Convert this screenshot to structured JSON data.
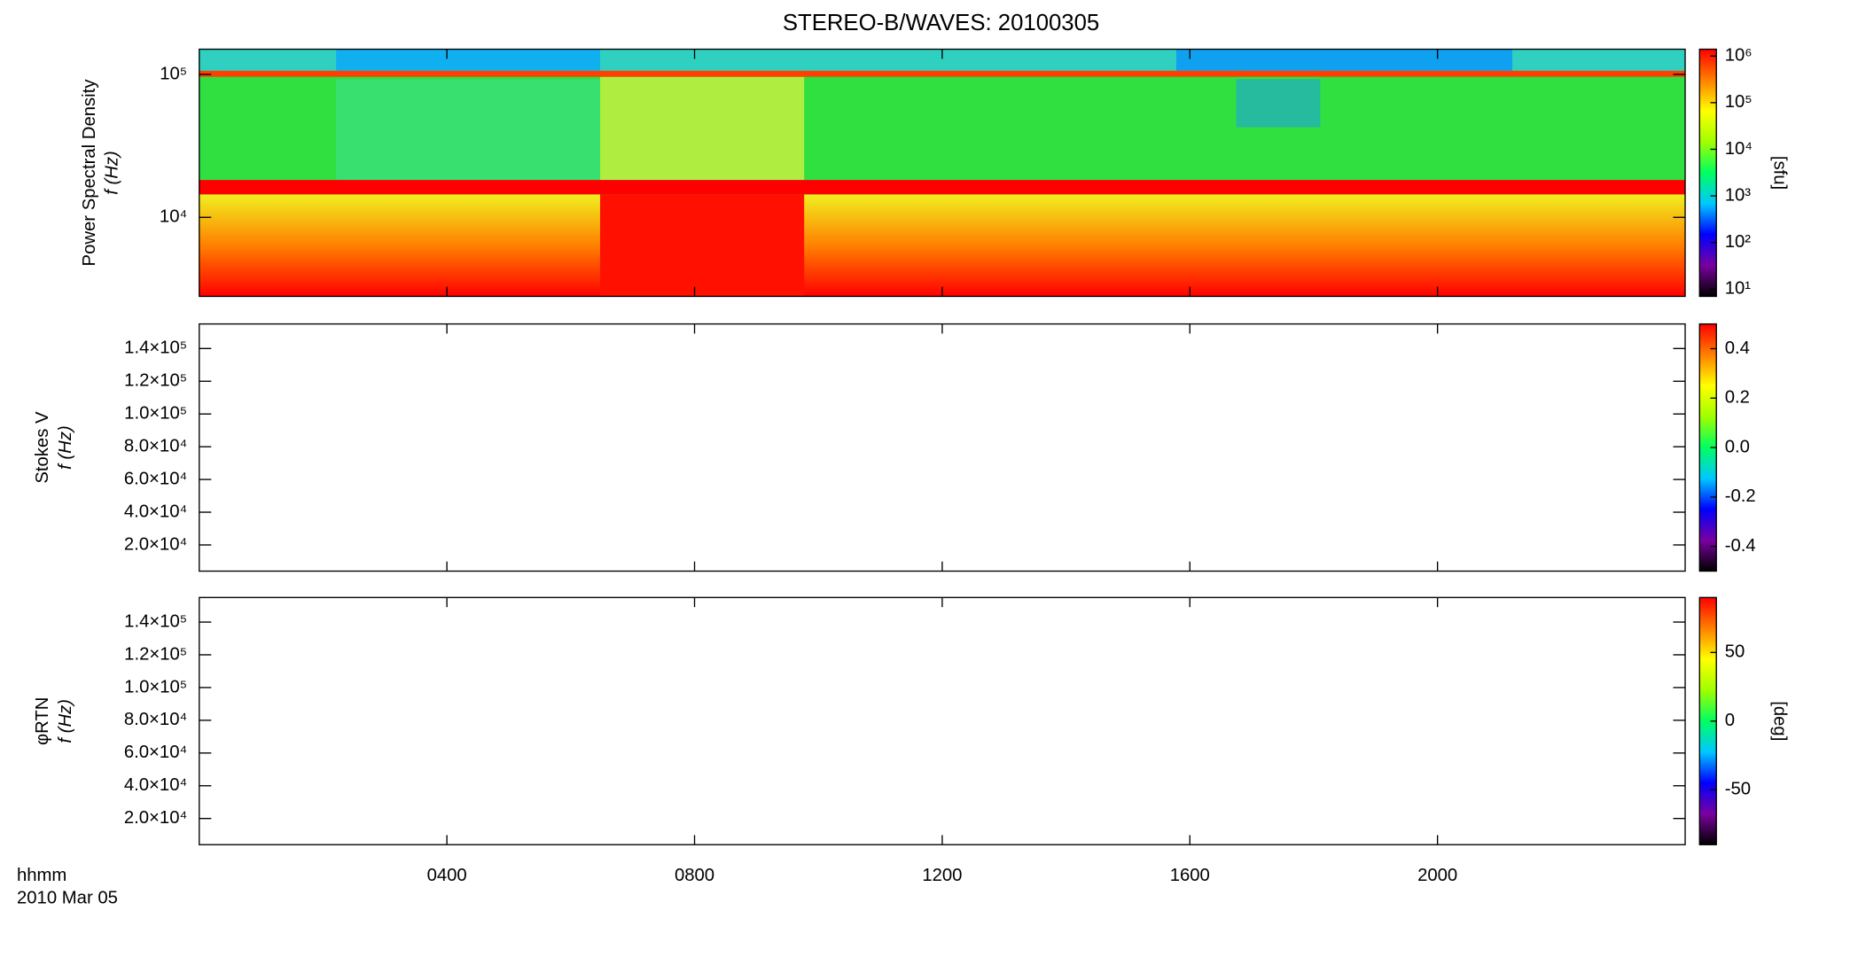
{
  "chart_data": [
    {
      "type": "heatmap",
      "title": "STEREO-B/WAVES: 20100305",
      "ylabel": "Power Spectral Density",
      "ylabel2": "f (Hz)",
      "ylim": [
        2800,
        150000
      ],
      "ylog": true,
      "yticks": [
        {
          "value": 10000,
          "label": "10⁴"
        },
        {
          "value": 100000,
          "label": "10⁵"
        }
      ],
      "xlim": [
        0,
        24
      ],
      "xticks": [
        {
          "value": 4,
          "label": "0400"
        },
        {
          "value": 8,
          "label": "0800"
        },
        {
          "value": 12,
          "label": "1200"
        },
        {
          "value": 16,
          "label": "1600"
        },
        {
          "value": 20,
          "label": "2000"
        }
      ],
      "clim": [
        7,
        1400000
      ],
      "clog": true,
      "cticks": [
        {
          "value": 10,
          "label": "10¹"
        },
        {
          "value": 100,
          "label": "10²"
        },
        {
          "value": 1000,
          "label": "10³"
        },
        {
          "value": 10000,
          "label": "10⁴"
        },
        {
          "value": 100000,
          "label": "10⁵"
        },
        {
          "value": 1000000,
          "label": "10⁶"
        }
      ],
      "colorbar_label": "[sfu]",
      "colormap": [
        "#000000",
        "#7a00a0",
        "#0000ff",
        "#00c8ff",
        "#00ff60",
        "#a0ff00",
        "#ffff00",
        "#ff8000",
        "#ff0000"
      ]
    },
    {
      "type": "heatmap",
      "ylabel": "Stokes V",
      "ylabel2": "f (Hz)",
      "ylim": [
        4000,
        155000
      ],
      "yticks": [
        {
          "value": 20000,
          "label": "2.0×10⁴"
        },
        {
          "value": 40000,
          "label": "4.0×10⁴"
        },
        {
          "value": 60000,
          "label": "6.0×10⁴"
        },
        {
          "value": 80000,
          "label": "8.0×10⁴"
        },
        {
          "value": 100000,
          "label": "1.0×10⁵"
        },
        {
          "value": 120000,
          "label": "1.2×10⁵"
        },
        {
          "value": 140000,
          "label": "1.4×10⁵"
        }
      ],
      "xlim": [
        0,
        24
      ],
      "xticks": [
        {
          "value": 4,
          "label": "0400"
        },
        {
          "value": 8,
          "label": "0800"
        },
        {
          "value": 12,
          "label": "1200"
        },
        {
          "value": 16,
          "label": "1600"
        },
        {
          "value": 20,
          "label": "2000"
        }
      ],
      "clim": [
        -0.5,
        0.5
      ],
      "cticks": [
        -0.4,
        -0.2,
        {
          "value": 0,
          "label": "0.0"
        },
        0.2,
        0.4
      ],
      "colormap": [
        "#000000",
        "#7a00a0",
        "#0000ff",
        "#00c8ff",
        "#00ff60",
        "#a0ff00",
        "#ffff00",
        "#ff8000",
        "#ff0000"
      ]
    },
    {
      "type": "heatmap",
      "ylabel": "φRTN",
      "ylabel2": "f (Hz)",
      "ylim": [
        4000,
        155000
      ],
      "yticks": [
        {
          "value": 20000,
          "label": "2.0×10⁴"
        },
        {
          "value": 40000,
          "label": "4.0×10⁴"
        },
        {
          "value": 60000,
          "label": "6.0×10⁴"
        },
        {
          "value": 80000,
          "label": "8.0×10⁴"
        },
        {
          "value": 100000,
          "label": "1.0×10⁵"
        },
        {
          "value": 120000,
          "label": "1.2×10⁵"
        },
        {
          "value": 140000,
          "label": "1.4×10⁵"
        }
      ],
      "xlim": [
        0,
        24
      ],
      "xticks": [
        {
          "value": 4,
          "label": "0400"
        },
        {
          "value": 8,
          "label": "0800"
        },
        {
          "value": 12,
          "label": "1200"
        },
        {
          "value": 16,
          "label": "1600"
        },
        {
          "value": 20,
          "label": "2000"
        }
      ],
      "xlabel": "hhmm",
      "date": "2010 Mar 05",
      "clim": [
        -90,
        90
      ],
      "cticks": [
        -50,
        0,
        50
      ],
      "colorbar_label": "[deg]",
      "colormap": [
        "#000000",
        "#7a00a0",
        "#0000ff",
        "#00c8ff",
        "#00ff60",
        "#a0ff00",
        "#ffff00",
        "#ff8000",
        "#ff0000"
      ]
    }
  ]
}
